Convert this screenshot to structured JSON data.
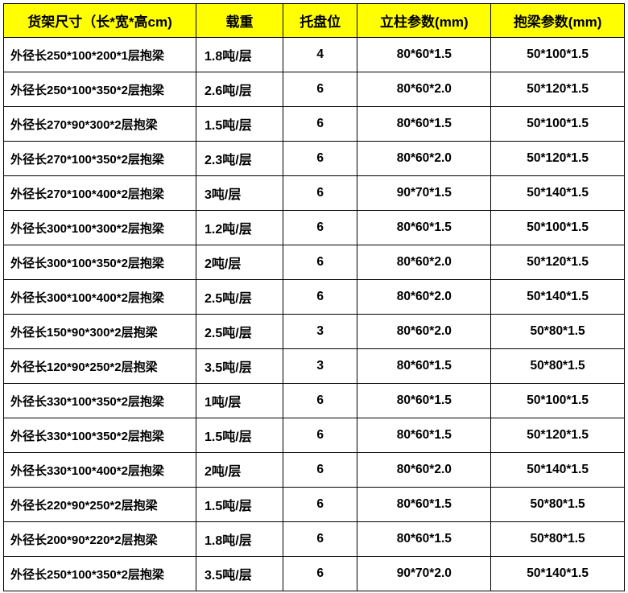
{
  "table": {
    "header_bg": "#ffff00",
    "border_color": "#000000",
    "columns": [
      "货架尺寸（长*宽*高cm)",
      "载重",
      "托盘位",
      "立柱参数(mm)",
      "抱梁参数(mm)"
    ],
    "rows": [
      [
        "外径长250*100*200*1层抱梁",
        "1.8吨/层",
        "4",
        "80*60*1.5",
        "50*100*1.5"
      ],
      [
        "外径长250*100*350*2层抱梁",
        "2.6吨/层",
        "6",
        "80*60*2.0",
        "50*120*1.5"
      ],
      [
        "外径长270*90*300*2层抱梁",
        "1.5吨/层",
        "6",
        "80*60*1.5",
        "50*100*1.5"
      ],
      [
        "外径长270*100*350*2层抱梁",
        "2.3吨/层",
        "6",
        "80*60*2.0",
        "50*120*1.5"
      ],
      [
        "外径长270*100*400*2层抱梁",
        "3吨/层",
        "6",
        "90*70*1.5",
        "50*140*1.5"
      ],
      [
        "外径长300*100*300*2层抱梁",
        "1.2吨/层",
        "6",
        "80*60*1.5",
        "50*100*1.5"
      ],
      [
        "外径长300*100*350*2层抱梁",
        "2吨/层",
        "6",
        "80*60*2.0",
        "50*120*1.5"
      ],
      [
        "外径长300*100*400*2层抱梁",
        "2.5吨/层",
        "6",
        "80*60*2.0",
        "50*140*1.5"
      ],
      [
        "外径长150*90*300*2层抱梁",
        "2.5吨/层",
        "3",
        "80*60*2.0",
        "50*80*1.5"
      ],
      [
        "外径长120*90*250*2层抱梁",
        "3.5吨/层",
        "3",
        "80*60*1.5",
        "50*80*1.5"
      ],
      [
        "外径长330*100*350*2层抱梁",
        "1吨/层",
        "6",
        "80*60*1.5",
        "50*100*1.5"
      ],
      [
        "外径长330*100*350*2层抱梁",
        "1.5吨/层",
        "6",
        "80*60*1.5",
        "50*120*1.5"
      ],
      [
        "外径长330*100*400*2层抱梁",
        "2吨/层",
        "6",
        "80*60*2.0",
        "50*140*1.5"
      ],
      [
        "外径长220*90*250*2层抱梁",
        "1.5吨/层",
        "6",
        "80*60*1.5",
        "50*80*1.5"
      ],
      [
        "外径长200*90*220*2层抱梁",
        "1.8吨/层",
        "6",
        "80*60*1.5",
        "50*80*1.5"
      ],
      [
        "外径长250*100*350*2层抱梁",
        "3.5吨/层",
        "6",
        "90*70*2.0",
        "50*140*1.5"
      ]
    ]
  }
}
